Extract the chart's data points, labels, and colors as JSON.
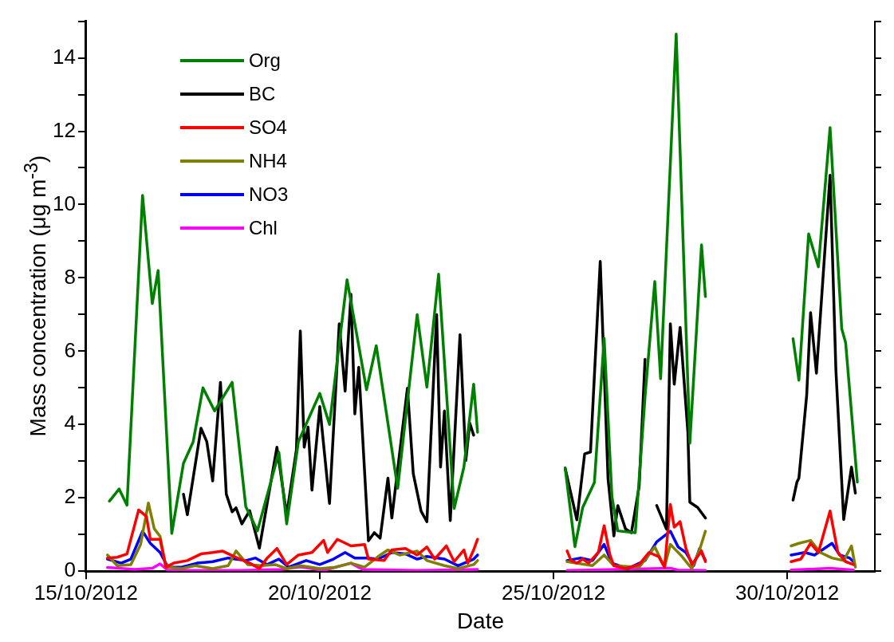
{
  "chart_data": {
    "type": "line",
    "xlabel": "Date",
    "ylabel": "Mass concentration (μg m$^{-3}$)",
    "xlim": [
      "2012-10-15",
      "2012-10-31T21:00"
    ],
    "xticks": [
      {
        "value": "2012-10-15",
        "label": "15/10/2012"
      },
      {
        "value": "2012-10-20",
        "label": "20/10/2012"
      },
      {
        "value": "2012-10-25",
        "label": "25/10/2012"
      },
      {
        "value": "2012-10-30",
        "label": "30/10/2012"
      }
    ],
    "ylim": [
      0,
      15
    ],
    "yticks": [
      0,
      {
        "value": 1,
        "label": null
      },
      2,
      {
        "value": 3,
        "label": null
      },
      4,
      {
        "value": 5,
        "label": null
      },
      6,
      {
        "value": 7,
        "label": null
      },
      8,
      {
        "value": 9,
        "label": null
      },
      10,
      {
        "value": 11,
        "label": null
      },
      12,
      {
        "value": 13,
        "label": null
      },
      14,
      {
        "value": 15,
        "label": null
      }
    ],
    "grid": false,
    "legend": "top left",
    "line_style": "solid",
    "series": [
      {
        "name": "Org",
        "color": "#008000",
        "x": [
          "2012-10-15T12:00",
          "2012-10-15T17:00",
          "2012-10-15T21:00",
          "2012-10-16T05:00",
          "2012-10-16T10:00",
          "2012-10-16T13:00",
          "2012-10-16T20:00",
          "2012-10-17T02:00",
          "2012-10-17T07:00",
          "2012-10-17T12:00",
          "2012-10-17T18:00",
          "2012-10-18T03:00",
          "2012-10-18T10:00",
          "2012-10-18T16:00",
          "2012-10-19T03:00",
          "2012-10-19T07:00",
          "2012-10-19T13:00",
          "2012-10-20T00:00",
          "2012-10-20T05:00",
          "2012-10-20T14:00",
          "2012-10-21T00:00",
          "2012-10-21T05:00",
          "2012-10-21T16:00",
          "2012-10-22T02:00",
          "2012-10-22T07:00",
          "2012-10-22T13:00",
          "2012-10-22T21:00",
          "2012-10-23T02:00",
          "2012-10-23T07:00",
          "2012-10-23T09:00",
          "2012-10-24T12:00",
          "2012-10-25T06:00",
          "2012-10-25T11:00",
          "2012-10-25T15:00",
          "2012-10-25T21:00",
          "2012-10-26T02:00",
          "2012-10-26T06:00",
          "2012-10-26T09:00",
          "2012-10-26T18:00",
          "2012-10-26T23:00",
          "2012-10-27T04:00",
          "2012-10-27T07:00",
          "2012-10-27T15:00",
          "2012-10-27T22:00",
          "2012-10-28T04:00",
          "2012-10-28T06:00",
          "2012-10-28T20:00",
          "2012-10-30T03:00",
          "2012-10-30T06:00",
          "2012-10-30T11:00",
          "2012-10-30T16:00",
          "2012-10-30T22:00",
          "2012-10-31T04:00",
          "2012-10-31T06:00",
          "2012-10-31T12:00"
        ],
        "values": [
          1.91,
          2.24,
          1.8,
          10.25,
          7.3,
          8.2,
          1.03,
          2.94,
          3.53,
          5.0,
          4.37,
          5.15,
          1.76,
          1.1,
          3.24,
          1.29,
          3.53,
          4.85,
          4.0,
          7.95,
          4.95,
          6.15,
          2.26,
          7.0,
          5.02,
          8.1,
          1.71,
          2.84,
          5.1,
          3.79,
          null,
          2.81,
          0.67,
          1.74,
          2.42,
          6.35,
          2.03,
          1.1,
          1.05,
          4.76,
          7.9,
          5.25,
          14.65,
          3.49,
          8.9,
          7.49,
          null,
          6.34,
          5.21,
          9.2,
          8.3,
          12.1,
          6.61,
          6.23,
          2.43
        ]
      },
      {
        "name": "BC",
        "color": "#000000",
        "x": [
          "2012-10-17T02:00",
          "2012-10-17T04:00",
          "2012-10-17T11:00",
          "2012-10-17T14:00",
          "2012-10-17T17:00",
          "2012-10-17T21:00",
          "2012-10-18T00:00",
          "2012-10-18T03:00",
          "2012-10-18T05:00",
          "2012-10-18T08:00",
          "2012-10-18T12:00",
          "2012-10-18T17:00",
          "2012-10-19T02:00",
          "2012-10-19T07:00",
          "2012-10-19T12:00",
          "2012-10-19T14:00",
          "2012-10-19T16:00",
          "2012-10-19T18:00",
          "2012-10-19T20:00",
          "2012-10-20T00:00",
          "2012-10-20T05:00",
          "2012-10-20T10:00",
          "2012-10-20T13:00",
          "2012-10-20T16:00",
          "2012-10-20T18:00",
          "2012-10-20T20:00",
          "2012-10-21T01:00",
          "2012-10-21T04:00",
          "2012-10-21T07:00",
          "2012-10-21T11:00",
          "2012-10-21T13:00",
          "2012-10-21T21:00",
          "2012-10-22T00:00",
          "2012-10-22T04:00",
          "2012-10-22T07:00",
          "2012-10-22T12:00",
          "2012-10-22T14:00",
          "2012-10-22T16:00",
          "2012-10-22T19:00",
          "2012-10-23T00:00",
          "2012-10-23T03:00",
          "2012-10-23T05:00",
          "2012-10-23T07:00",
          "2012-10-24T12:00",
          "2012-10-25T06:00",
          "2012-10-25T12:00",
          "2012-10-25T16:00",
          "2012-10-25T19:00",
          "2012-10-26T00:00",
          "2012-10-26T04:00",
          "2012-10-26T07:00",
          "2012-10-26T09:00",
          "2012-10-26T13:00",
          "2012-10-26T16:00",
          "2012-10-26T20:00",
          "2012-10-26T23:00",
          "2012-10-27T01:00",
          "2012-10-27T05:00",
          "2012-10-27T10:00",
          "2012-10-27T12:00",
          "2012-10-27T14:00",
          "2012-10-27T17:00",
          "2012-10-27T21:00",
          "2012-10-27T22:00",
          "2012-10-28T02:00",
          "2012-10-28T06:00",
          "2012-10-28T20:00",
          "2012-10-30T03:00",
          "2012-10-30T05:00",
          "2012-10-30T06:00",
          "2012-10-30T10:00",
          "2012-10-30T12:00",
          "2012-10-30T15:00",
          "2012-10-30T22:00",
          "2012-10-31T01:00",
          "2012-10-31T05:00",
          "2012-10-31T09:00",
          "2012-10-31T11:00"
        ],
        "values": [
          2.1,
          1.54,
          3.9,
          3.53,
          2.46,
          5.15,
          2.1,
          1.62,
          1.73,
          1.29,
          1.65,
          0.63,
          3.38,
          1.54,
          3.31,
          6.55,
          3.38,
          3.93,
          2.21,
          4.49,
          1.85,
          6.75,
          4.91,
          7.55,
          4.29,
          5.56,
          0.83,
          1.05,
          0.9,
          2.54,
          1.45,
          4.99,
          2.66,
          1.64,
          1.35,
          7.0,
          2.84,
          4.37,
          1.38,
          6.45,
          3.02,
          4.04,
          3.71,
          null,
          2.81,
          1.4,
          3.2,
          3.25,
          8.45,
          2.52,
          0.96,
          1.79,
          1.15,
          1.05,
          2.32,
          5.78,
          null,
          1.79,
          1.15,
          6.75,
          5.1,
          6.65,
          3.78,
          1.88,
          1.74,
          1.45,
          null,
          1.94,
          2.43,
          2.54,
          4.8,
          7.05,
          5.4,
          10.8,
          5.48,
          1.41,
          2.84,
          2.13
        ]
      },
      {
        "name": "SO4",
        "color": "#ff0000",
        "x": [
          "2012-10-15T11:00",
          "2012-10-15T16:00",
          "2012-10-15T21:00",
          "2012-10-16T03:00",
          "2012-10-16T07:00",
          "2012-10-16T09:00",
          "2012-10-16T14:00",
          "2012-10-16T17:00",
          "2012-10-16T21:00",
          "2012-10-17T04:00",
          "2012-10-17T11:00",
          "2012-10-17T17:00",
          "2012-10-17T22:00",
          "2012-10-18T04:00",
          "2012-10-18T12:00",
          "2012-10-18T17:00",
          "2012-10-18T21:00",
          "2012-10-19T02:00",
          "2012-10-19T07:00",
          "2012-10-19T13:00",
          "2012-10-19T20:00",
          "2012-10-20T02:00",
          "2012-10-20T04:00",
          "2012-10-20T09:00",
          "2012-10-20T16:00",
          "2012-10-20T23:00",
          "2012-10-21T01:00",
          "2012-10-21T09:00",
          "2012-10-21T13:00",
          "2012-10-21T20:00",
          "2012-10-22T02:00",
          "2012-10-22T07:00",
          "2012-10-22T11:00",
          "2012-10-22T17:00",
          "2012-10-22T21:00",
          "2012-10-23T02:00",
          "2012-10-23T04:00",
          "2012-10-23T07:00",
          "2012-10-23T09:00",
          "2012-10-24T12:00",
          "2012-10-25T07:00",
          "2012-10-25T09:00",
          "2012-10-25T12:00",
          "2012-10-25T15:00",
          "2012-10-25T18:00",
          "2012-10-25T23:00",
          "2012-10-26T02:00",
          "2012-10-26T05:00",
          "2012-10-26T07:00",
          "2012-10-26T13:00",
          "2012-10-26T20:00",
          "2012-10-27T01:00",
          "2012-10-27T06:00",
          "2012-10-27T09:00",
          "2012-10-27T12:00",
          "2012-10-27T14:00",
          "2012-10-27T17:00",
          "2012-10-27T20:00",
          "2012-10-27T23:00",
          "2012-10-28T04:00",
          "2012-10-28T06:00",
          "2012-10-28T20:00",
          "2012-10-30T02:00",
          "2012-10-30T07:00",
          "2012-10-30T12:00",
          "2012-10-30T16:00",
          "2012-10-30T22:00",
          "2012-10-31T02:00",
          "2012-10-31T06:00",
          "2012-10-31T10:00"
        ],
        "values": [
          0.36,
          0.38,
          0.47,
          1.67,
          1.49,
          0.87,
          0.87,
          0.11,
          0.22,
          0.29,
          0.47,
          0.51,
          0.55,
          0.4,
          0.22,
          0.07,
          0.36,
          0.62,
          0.18,
          0.44,
          0.51,
          0.84,
          0.51,
          0.87,
          0.69,
          0.73,
          0.33,
          0.29,
          0.58,
          0.62,
          0.44,
          0.66,
          0.33,
          0.69,
          0.26,
          0.58,
          0.22,
          0.58,
          0.87,
          null,
          0.55,
          0.29,
          0.22,
          0.33,
          0.22,
          0.51,
          1.24,
          0.44,
          0.15,
          0.07,
          0.18,
          0.51,
          0.4,
          0.11,
          1.82,
          1.2,
          1.35,
          0.62,
          0.18,
          0.55,
          0.26,
          null,
          0.26,
          0.33,
          0.76,
          0.51,
          1.64,
          0.51,
          0.26,
          0.18
        ]
      },
      {
        "name": "NH4",
        "color": "#808000",
        "x": [
          "2012-10-15T11:00",
          "2012-10-15T16:00",
          "2012-10-15T23:00",
          "2012-10-16T04:00",
          "2012-10-16T08:00",
          "2012-10-16T11:00",
          "2012-10-16T14:00",
          "2012-10-16T17:00",
          "2012-10-17T01:00",
          "2012-10-17T08:00",
          "2012-10-17T17:00",
          "2012-10-18T01:00",
          "2012-10-18T05:00",
          "2012-10-18T11:00",
          "2012-10-18T18:00",
          "2012-10-19T01:00",
          "2012-10-19T07:00",
          "2012-10-19T14:00",
          "2012-10-20T00:00",
          "2012-10-20T08:00",
          "2012-10-20T16:00",
          "2012-10-20T23:00",
          "2012-10-21T06:00",
          "2012-10-21T11:00",
          "2012-10-21T17:00",
          "2012-10-22T02:00",
          "2012-10-22T07:00",
          "2012-10-22T16:00",
          "2012-10-22T23:00",
          "2012-10-23T07:00",
          "2012-10-23T09:00",
          "2012-10-24T12:00",
          "2012-10-25T07:00",
          "2012-10-25T20:00",
          "2012-10-26T02:00",
          "2012-10-26T07:00",
          "2012-10-26T20:00",
          "2012-10-27T04:00",
          "2012-10-27T09:00",
          "2012-10-27T12:00",
          "2012-10-27T18:00",
          "2012-10-27T23:00",
          "2012-10-28T03:00",
          "2012-10-28T06:00",
          "2012-10-28T20:00",
          "2012-10-30T02:00",
          "2012-10-30T06:00",
          "2012-10-30T12:00",
          "2012-10-30T17:00",
          "2012-10-30T23:00",
          "2012-10-31T05:00",
          "2012-10-31T09:00",
          "2012-10-31T11:00"
        ],
        "values": [
          0.44,
          0.15,
          0.18,
          0.73,
          1.86,
          1.16,
          0.95,
          0.11,
          0.07,
          0.15,
          0.07,
          0.15,
          0.55,
          0.18,
          0.15,
          0.18,
          0.07,
          0.15,
          0.07,
          0.11,
          0.22,
          0.11,
          0.4,
          0.58,
          0.44,
          0.55,
          0.29,
          0.15,
          0.07,
          0.18,
          0.29,
          null,
          0.26,
          0.15,
          0.44,
          0.15,
          0.11,
          0.66,
          0.11,
          0.73,
          0.4,
          0.07,
          0.58,
          1.09,
          null,
          0.69,
          0.76,
          0.84,
          0.51,
          0.36,
          0.29,
          0.69,
          0.11
        ]
      },
      {
        "name": "NO3",
        "color": "#0000ff",
        "x": [
          "2012-10-15T11:00",
          "2012-10-15T18:00",
          "2012-10-15T23:00",
          "2012-10-16T05:00",
          "2012-10-16T09:00",
          "2012-10-16T14:00",
          "2012-10-16T18:00",
          "2012-10-17T01:00",
          "2012-10-17T09:00",
          "2012-10-17T17:00",
          "2012-10-18T01:00",
          "2012-10-18T10:00",
          "2012-10-18T15:00",
          "2012-10-18T21:00",
          "2012-10-19T03:00",
          "2012-10-19T08:00",
          "2012-10-19T17:00",
          "2012-10-20T00:00",
          "2012-10-20T07:00",
          "2012-10-20T13:00",
          "2012-10-20T18:00",
          "2012-10-21T00:00",
          "2012-10-21T06:00",
          "2012-10-21T13:00",
          "2012-10-21T20:00",
          "2012-10-22T02:00",
          "2012-10-22T07:00",
          "2012-10-22T16:00",
          "2012-10-22T23:00",
          "2012-10-23T07:00",
          "2012-10-23T09:00",
          "2012-10-24T12:00",
          "2012-10-25T07:00",
          "2012-10-25T14:00",
          "2012-10-25T20:00",
          "2012-10-26T02:00",
          "2012-10-26T06:00",
          "2012-10-26T14:00",
          "2012-10-26T23:00",
          "2012-10-27T05:00",
          "2012-10-27T12:00",
          "2012-10-27T16:00",
          "2012-10-27T20:00",
          "2012-10-28T00:00",
          "2012-10-28T03:00",
          "2012-10-28T06:00",
          "2012-10-28T20:00",
          "2012-10-30T02:00",
          "2012-10-30T09:00",
          "2012-10-30T14:00",
          "2012-10-30T23:00",
          "2012-10-31T03:00",
          "2012-10-31T08:00",
          "2012-10-31T10:00"
        ],
        "values": [
          0.33,
          0.22,
          0.33,
          1.09,
          0.76,
          0.51,
          0.11,
          0.11,
          0.22,
          0.26,
          0.36,
          0.29,
          0.36,
          0.18,
          0.33,
          0.11,
          0.29,
          0.18,
          0.33,
          0.51,
          0.36,
          0.36,
          0.33,
          0.51,
          0.47,
          0.33,
          0.4,
          0.33,
          0.15,
          0.33,
          0.44,
          null,
          0.29,
          0.36,
          0.29,
          0.73,
          0.22,
          0.07,
          0.29,
          0.8,
          1.09,
          0.66,
          0.51,
          0.15,
          0.62,
          0.29,
          null,
          0.44,
          0.51,
          0.44,
          0.76,
          0.44,
          0.36,
          0.26
        ]
      },
      {
        "name": "Chl",
        "color": "#ff00ff",
        "x": [
          "2012-10-15T11:00",
          "2012-10-16T01:00",
          "2012-10-16T10:00",
          "2012-10-16T14:00",
          "2012-10-16T18:00",
          "2012-10-18T08:00",
          "2012-10-19T04:00",
          "2012-10-19T14:00",
          "2012-10-20T02:00",
          "2012-10-20T16:00",
          "2012-10-20T22:00",
          "2012-10-22T02:00",
          "2012-10-23T09:00",
          "2012-10-24T12:00",
          "2012-10-25T07:00",
          "2012-10-27T12:00",
          "2012-10-27T16:00",
          "2012-10-28T06:00",
          "2012-10-28T20:00",
          "2012-10-30T02:00",
          "2012-10-30T22:00",
          "2012-10-31T10:00"
        ],
        "values": [
          0.1,
          0.05,
          0.08,
          0.2,
          0.02,
          0.02,
          0.05,
          0.12,
          0.02,
          0.22,
          0.05,
          0.02,
          0.05,
          null,
          0.02,
          0.08,
          0.03,
          0.02,
          null,
          0.03,
          0.08,
          0.03
        ]
      }
    ]
  }
}
